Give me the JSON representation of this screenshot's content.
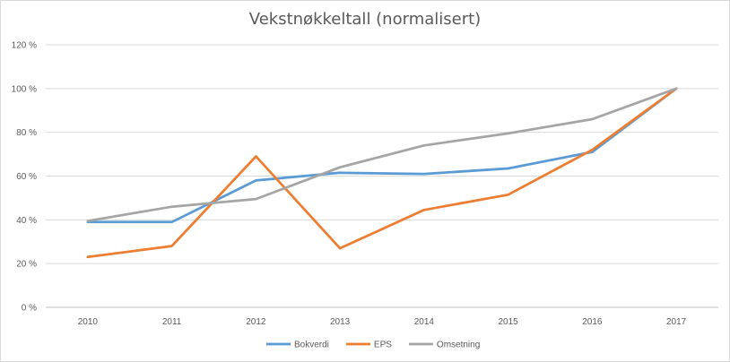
{
  "chart_data": {
    "type": "line",
    "title": "Vekstnøkkeltall (normalisert)",
    "xlabel": "",
    "ylabel": "",
    "categories": [
      "2010",
      "2011",
      "2012",
      "2013",
      "2014",
      "2015",
      "2016",
      "2017"
    ],
    "y_ticks": [
      "0 %",
      "20 %",
      "40 %",
      "60 %",
      "80 %",
      "100 %",
      "120 %"
    ],
    "ylim": [
      0,
      120
    ],
    "y_unit": "%",
    "grid": true,
    "legend_position": "bottom",
    "series": [
      {
        "name": "Bokverdi",
        "color": "#5b9bd5",
        "values": [
          39,
          39,
          58,
          61.5,
          61,
          63.5,
          71,
          100
        ]
      },
      {
        "name": "EPS",
        "color": "#ed7d31",
        "values": [
          23,
          28,
          69,
          27,
          44.5,
          51.5,
          72,
          100
        ]
      },
      {
        "name": "Omsetning",
        "color": "#a5a5a5",
        "values": [
          39.5,
          46,
          49.5,
          64,
          74,
          79.5,
          86,
          100
        ]
      }
    ]
  }
}
